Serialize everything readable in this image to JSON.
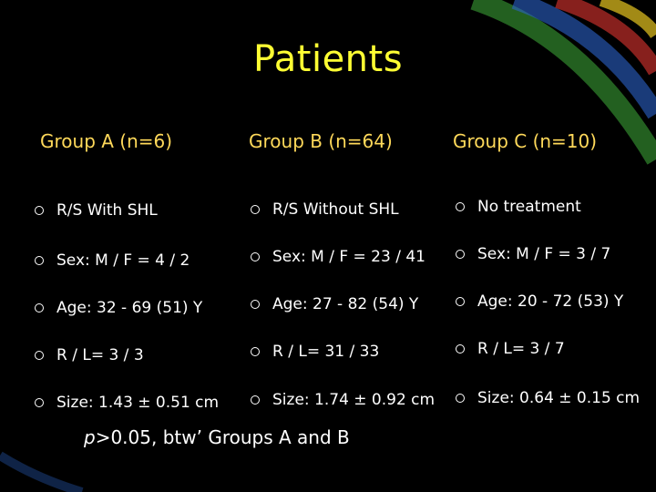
{
  "title": "Patients",
  "groups": [
    {
      "header": "Group A (n=6)",
      "items": [
        "R/S With SHL",
        "Sex: M / F = 4 / 2",
        "Age: 32 - 69 (51) Y",
        "R / L=  3 / 3",
        "Size: 1.43 ± 0.51 cm"
      ]
    },
    {
      "header": "Group B (n=64)",
      "items": [
        "R/S Without SHL",
        "Sex: M / F = 23 / 41",
        " Age: 27 - 82 (54) Y",
        " R / L= 31 / 33",
        "Size: 1.74 ± 0.92 cm"
      ]
    },
    {
      "header": "Group C (n=10)",
      "items": [
        "No treatment",
        "Sex: M / F = 3 / 7",
        " Age: 20 - 72 (53) Y",
        " R / L=  3 / 7",
        "Size: 0.64 ± 0.15 cm"
      ]
    }
  ],
  "footnote": {
    "p_symbol": "p",
    "text": ">0.05, btw’ Groups A and B"
  },
  "colors": {
    "background": "#000000",
    "title": "#FFFF33",
    "header": "#FFD95A",
    "body_text": "#FFFFFF"
  }
}
